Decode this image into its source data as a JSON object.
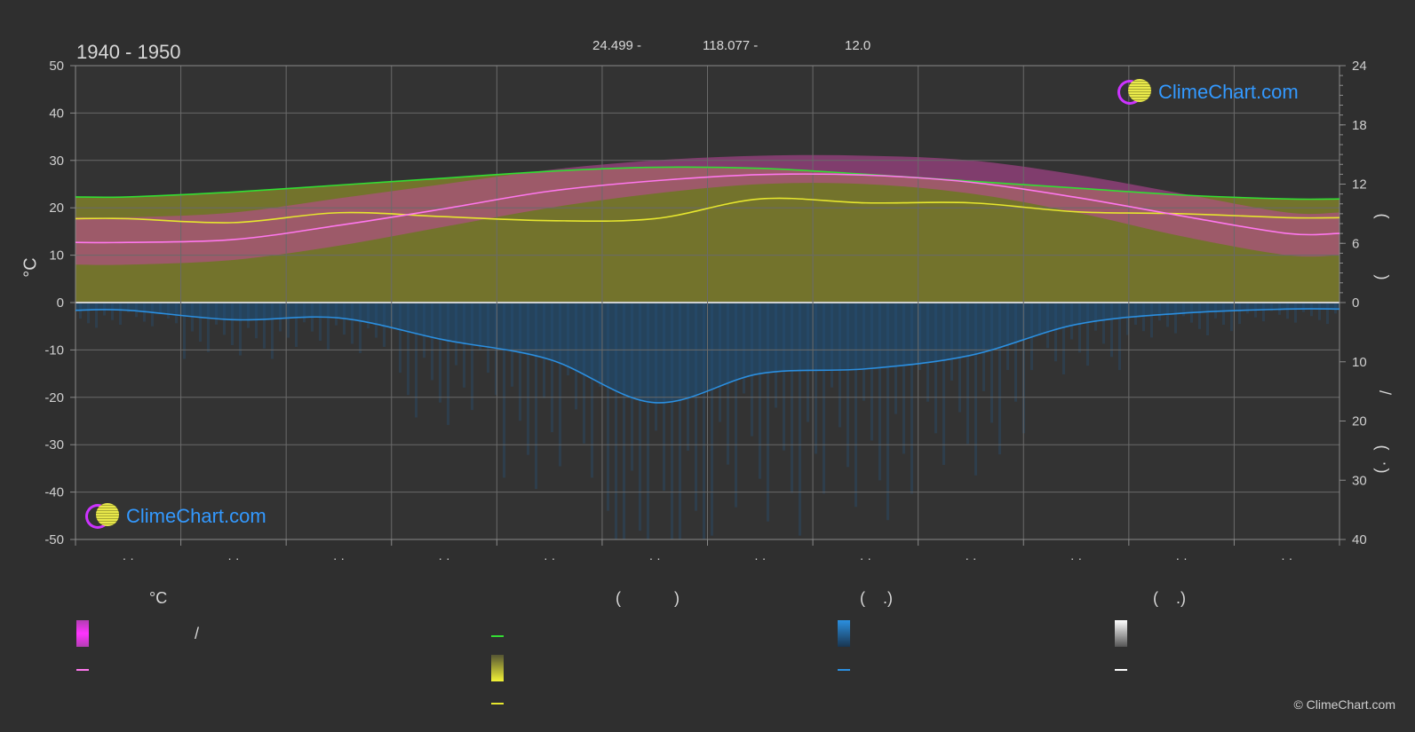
{
  "header": {
    "period": "1940 - 1950",
    "lat_label": "24.499 -",
    "lon_label": "118.077 -",
    "elev_label": "12.0"
  },
  "brand": {
    "name": "ClimeChart.com",
    "copyright": "© ClimeChart.com",
    "colors": {
      "ring": "#cc33ff",
      "sun": "#e8e84a",
      "text": "#3399ff"
    }
  },
  "axes": {
    "left_label": "°C",
    "left_ticks": [
      "50",
      "40",
      "30",
      "20",
      "10",
      "0",
      "-10",
      "-20",
      "-30",
      "-40",
      "-50"
    ],
    "right_top_ticks": [
      "24",
      "18",
      "12",
      "6",
      "0"
    ],
    "right_bottom_ticks": [
      "10",
      "20",
      "30",
      "40"
    ],
    "right_top_glyphs": [
      "(",
      ")"
    ],
    "right_bottom_glyphs": [
      "/",
      "(",
      "·",
      ")"
    ],
    "month_labels": [
      "· ·",
      "· ·",
      "· ·",
      "· ·",
      "· ·",
      "· ·",
      "· ·",
      "· ·",
      "· ·",
      "· ·",
      "· ·",
      "· ·"
    ]
  },
  "legend": {
    "col1_title": "°C",
    "col1_item1": "/",
    "col2_title": "(            )",
    "col3_title": "(    .)",
    "col4_title": "(    .)"
  },
  "chart_data": {
    "type": "line",
    "x": [
      "Jan",
      "Feb",
      "Mar",
      "Apr",
      "May",
      "Jun",
      "Jul",
      "Aug",
      "Sep",
      "Oct",
      "Nov",
      "Dec"
    ],
    "ylim_left": [
      -50,
      50
    ],
    "ylim_right_top": [
      0,
      24
    ],
    "ylim_right_bottom": [
      40,
      0
    ],
    "grid": true,
    "series": [
      {
        "key": "daylight",
        "color": "#33dd33",
        "axis": "right_top",
        "values": [
          10.7,
          11.2,
          11.9,
          12.6,
          13.3,
          13.7,
          13.6,
          13.0,
          12.3,
          11.6,
          10.9,
          10.5
        ]
      },
      {
        "key": "sunshine",
        "color": "#e6e62e",
        "axis": "right_top",
        "values": [
          8.5,
          8.1,
          9.1,
          8.7,
          8.3,
          8.5,
          10.5,
          10.1,
          10.1,
          9.2,
          9.0,
          8.6
        ]
      },
      {
        "key": "temp_mean",
        "color": "#ff77ee",
        "axis": "left",
        "values": [
          12.7,
          13.3,
          16.3,
          19.8,
          23.5,
          25.7,
          27.0,
          26.9,
          25.4,
          22.2,
          18.3,
          14.6
        ]
      },
      {
        "key": "precip",
        "color": "#2b8fe0",
        "axis": "right_bottom",
        "values": [
          1.3,
          2.9,
          2.6,
          6.3,
          9.6,
          16.9,
          12.0,
          11.2,
          8.9,
          3.7,
          1.8,
          1.1
        ]
      }
    ],
    "bands": {
      "temp_max_top": [
        18,
        19,
        22,
        25,
        28,
        30,
        31,
        31,
        30,
        27,
        23,
        19
      ],
      "temp_min_bottom": [
        8,
        9,
        12,
        16,
        20,
        23,
        25,
        25,
        23,
        19,
        14,
        10
      ],
      "sunshine_fill_color": "#7f7f2c",
      "temp_fill_color": "#c0469c",
      "precip_fill_color": "#1d4e78"
    }
  }
}
